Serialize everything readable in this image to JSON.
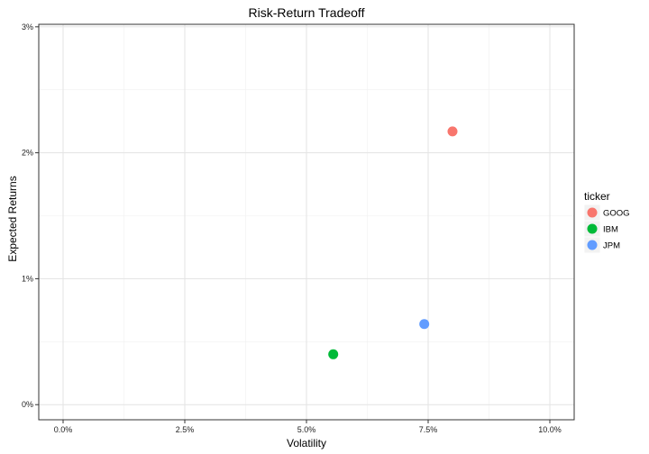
{
  "chart_data": {
    "type": "scatter",
    "title": "Risk-Return Tradeoff",
    "xlabel": "Volatility",
    "ylabel": "Expected Returns",
    "xlim": [
      -0.005,
      0.105
    ],
    "ylim": [
      -0.0012,
      0.0302
    ],
    "x_ticks": [
      0,
      0.025,
      0.05,
      0.075,
      0.1
    ],
    "x_tick_labels": [
      "0.0%",
      "2.5%",
      "5.0%",
      "7.5%",
      "10.0%"
    ],
    "y_ticks": [
      0,
      0.01,
      0.02,
      0.03
    ],
    "y_tick_labels": [
      "0%",
      "1%",
      "2%",
      "3%"
    ],
    "grid": true,
    "legend": {
      "title": "ticker",
      "position": "right"
    },
    "series": [
      {
        "name": "GOOG",
        "color": "#F8766D",
        "x": 0.08,
        "y": 0.0217
      },
      {
        "name": "IBM",
        "color": "#00BA38",
        "x": 0.0555,
        "y": 0.004
      },
      {
        "name": "JPM",
        "color": "#619CFF",
        "x": 0.0742,
        "y": 0.0064
      }
    ]
  }
}
